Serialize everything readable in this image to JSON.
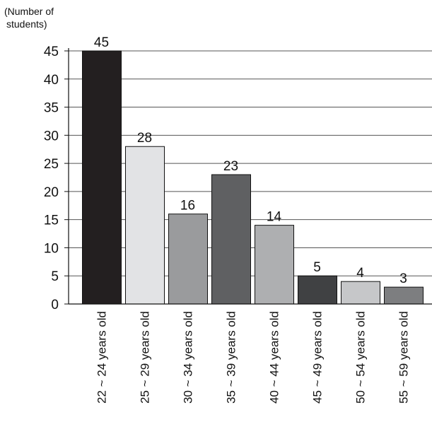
{
  "chart_data": {
    "type": "bar",
    "ylabel_lines": [
      "(Number of",
      "students)"
    ],
    "xlabel": "",
    "categories": [
      "22 ~ 24 years old",
      "25 ~ 29 years old",
      "30 ~ 34 years old",
      "35 ~ 39 years old",
      "40 ~ 44 years old",
      "45 ~ 49 years old",
      "50 ~ 54 years old",
      "55 ~ 59 years old"
    ],
    "values": [
      45,
      28,
      16,
      23,
      14,
      5,
      4,
      3
    ],
    "bar_colors": [
      "#231f20",
      "#e2e3e5",
      "#9a9b9d",
      "#5f6062",
      "#aeafb1",
      "#404143",
      "#c6c7c9",
      "#7d7e80"
    ],
    "ylim": [
      0,
      45
    ],
    "yticks": [
      0,
      5,
      10,
      15,
      20,
      25,
      30,
      35,
      40,
      45
    ],
    "grid": true,
    "data_labels": true
  }
}
